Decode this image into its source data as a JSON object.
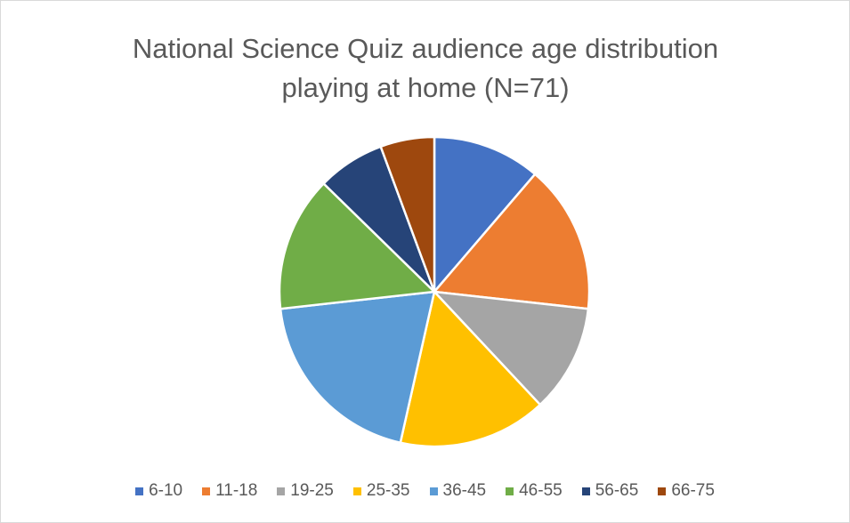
{
  "chart_data": {
    "type": "pie",
    "title": "National Science Quiz audience age distribution playing at home (N=71)",
    "categories": [
      "6-10",
      "11-18",
      "19-25",
      "25-35",
      "36-45",
      "46-55",
      "56-65",
      "66-75"
    ],
    "values": [
      8,
      11,
      8,
      11,
      14,
      10,
      5,
      4
    ],
    "colors": [
      "#4472c4",
      "#ed7d31",
      "#a5a5a5",
      "#ffc000",
      "#5b9bd5",
      "#70ad47",
      "#264478",
      "#9e480e"
    ],
    "legend": "bottom"
  }
}
